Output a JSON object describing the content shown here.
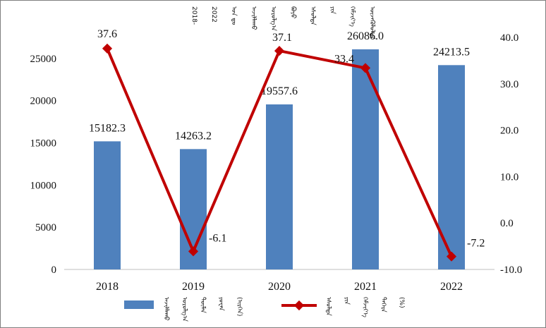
{
  "chart_data": {
    "type": "bar+line",
    "categories": [
      "2018",
      "2019",
      "2020",
      "2021",
      "2022"
    ],
    "series": [
      {
        "name": "ᠠᠵᠢᠯᠯᠠᠬᠤ ᠣᠷᠣᠯᠭ᠎ᠠ",
        "kind": "bar",
        "axis": "left",
        "color": "#4f81bd",
        "values": [
          15182.3,
          14263.2,
          19557.6,
          26086.0,
          24213.5
        ],
        "labels": [
          "15182.3",
          "14263.2",
          "19557.6",
          "26086.0",
          "24213.5"
        ]
      },
      {
        "name": "ᠡᠰᠦᠯᠲᠡ ᠶᠢᠨ ᠬᠡᠮᠵᠢᠶ᠎ᠡ (%)",
        "kind": "line",
        "axis": "right",
        "color": "#c00000",
        "values": [
          37.6,
          -6.1,
          37.1,
          33.4,
          -7.2
        ],
        "labels": [
          "37.6",
          "-6.1",
          "37.1",
          "33.4",
          "-7.2"
        ]
      }
    ],
    "y_left": {
      "min": 0,
      "max": 27500,
      "ticks": [
        "0",
        "5000",
        "10000",
        "15000",
        "20000",
        "25000"
      ]
    },
    "y_right": {
      "min": -10,
      "max": 40,
      "ticks": [
        "-10.0",
        "0.0",
        "10.0",
        "20.0",
        "30.0",
        "40.0"
      ]
    },
    "title_lines": [
      "2018-",
      "2022",
      "ᠣᠨ ᠳᠤ",
      "ᠠᠵᠢᠯᠯᠠᠬᠤ",
      "ᠣᠷᠣᠯᠭ᠎ᠠ",
      "ᠪᠤᠶᠤ",
      "ᠡᠰᠦᠯᠲᠡ",
      "ᠶᠢᠨ",
      "ᠬᠡᠮᠵᠢᠶ᠎ᠡ",
      "ᠦᠵᠡᠭᠦᠯᠦᠯᠲᠡ"
    ],
    "legend": {
      "bar_text": [
        "ᠠᠵᠢᠯᠯᠠᠬᠤ",
        "ᠣᠷᠣᠯᠭ᠎ᠠ",
        "ᠲᠦᠮᠡᠨ",
        "ᠶᠤᠸᠠᠨ",
        "(ᠢᠷᠭᠡᠨ)"
      ],
      "line_text": [
        "ᠡᠰᠦᠯᠲᠡ",
        "ᠶᠢᠨ",
        "ᠬᠡᠮᠵᠢᠶ᠎ᠡ",
        "ᠳᠡᠭᠡᠷᠡ",
        "(%)"
      ]
    }
  }
}
